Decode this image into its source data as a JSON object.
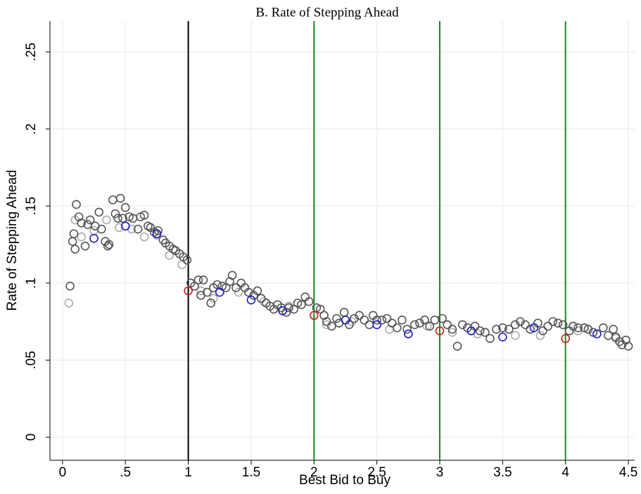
{
  "chart_data": {
    "type": "scatter",
    "title": "B. Rate of Stepping Ahead",
    "x_label": "Best Bid to Buy",
    "y_label": "Rate of Stepping Ahead",
    "xlim": [
      -0.1,
      4.55
    ],
    "ylim": [
      -0.015,
      0.27
    ],
    "xticks": [
      0,
      {
        "value": 0.5,
        "label": ".5"
      },
      1,
      1.5,
      2,
      2.5,
      3,
      3.5,
      4,
      4.5
    ],
    "yticks": [
      0,
      {
        "value": 0.05,
        "label": ".05"
      },
      {
        "value": 0.1,
        "label": ".1"
      },
      {
        "value": 0.15,
        "label": ".15"
      },
      {
        "value": 0.2,
        "label": ".2"
      },
      {
        "value": 0.25,
        "label": ".25"
      }
    ],
    "grid": true,
    "vlines": [
      {
        "x": 1,
        "color": "#000000"
      },
      {
        "x": 2,
        "color": "#1f8a1f"
      },
      {
        "x": 3,
        "color": "#1f8a1f"
      },
      {
        "x": 4,
        "color": "#1f8a1f"
      }
    ],
    "series": [
      {
        "color": "#aaaaaa",
        "x": [
          0.05,
          0.1,
          0.15,
          0.25,
          0.35,
          0.45,
          0.55,
          0.65,
          0.75,
          0.85,
          0.95,
          1.1,
          1.2,
          1.4,
          1.6,
          1.8,
          2.1,
          2.3,
          2.6,
          2.9,
          3.1,
          3.3,
          3.6,
          3.8,
          4.1,
          4.4
        ],
        "values": [
          0.087,
          0.141,
          0.13,
          0.134,
          0.141,
          0.136,
          0.135,
          0.13,
          0.131,
          0.118,
          0.112,
          0.095,
          0.09,
          0.094,
          0.088,
          0.085,
          0.073,
          0.075,
          0.07,
          0.072,
          0.068,
          0.067,
          0.066,
          0.066,
          0.069,
          0.064
        ]
      },
      {
        "color": "#555555",
        "x": [
          0.06,
          0.08,
          0.09,
          0.1,
          0.11,
          0.13,
          0.15,
          0.18,
          0.2,
          0.22,
          0.26,
          0.29,
          0.31,
          0.34,
          0.36,
          0.37,
          0.4,
          0.42,
          0.44,
          0.46,
          0.48,
          0.5,
          0.53,
          0.56,
          0.6,
          0.62,
          0.65,
          0.68,
          0.7,
          0.73,
          0.76,
          0.8,
          0.82,
          0.85,
          0.88,
          0.9,
          0.93,
          0.96,
          0.99,
          1.02,
          1.05,
          1.08,
          1.1,
          1.12,
          1.15,
          1.18,
          1.2,
          1.23,
          1.27,
          1.3,
          1.33,
          1.35,
          1.38,
          1.42,
          1.45,
          1.48,
          1.52,
          1.55,
          1.58,
          1.62,
          1.65,
          1.68,
          1.71,
          1.74,
          1.78,
          1.8,
          1.84,
          1.87,
          1.9,
          1.93,
          1.96,
          2.02,
          2.05,
          2.08,
          2.1,
          2.14,
          2.18,
          2.2,
          2.24,
          2.28,
          2.32,
          2.36,
          2.4,
          2.44,
          2.47,
          2.5,
          2.54,
          2.58,
          2.62,
          2.66,
          2.7,
          2.74,
          2.8,
          2.84,
          2.88,
          2.92,
          2.96,
          3.02,
          3.06,
          3.1,
          3.14,
          3.18,
          3.22,
          3.28,
          3.32,
          3.36,
          3.4,
          3.45,
          3.5,
          3.55,
          3.6,
          3.64,
          3.68,
          3.72,
          3.78,
          3.82,
          3.86,
          3.9,
          3.94,
          3.98,
          4.03,
          4.06,
          4.1,
          4.15,
          4.18,
          4.22,
          4.3,
          4.34,
          4.38,
          4.4,
          4.43,
          4.45,
          4.48,
          4.5
        ],
        "values": [
          0.098,
          0.127,
          0.132,
          0.122,
          0.151,
          0.143,
          0.139,
          0.124,
          0.138,
          0.141,
          0.137,
          0.146,
          0.135,
          0.127,
          0.124,
          0.125,
          0.154,
          0.145,
          0.142,
          0.155,
          0.142,
          0.149,
          0.143,
          0.142,
          0.135,
          0.143,
          0.144,
          0.137,
          0.136,
          0.133,
          0.134,
          0.128,
          0.126,
          0.124,
          0.122,
          0.121,
          0.119,
          0.117,
          0.115,
          0.1,
          0.098,
          0.102,
          0.092,
          0.102,
          0.094,
          0.087,
          0.097,
          0.099,
          0.098,
          0.097,
          0.101,
          0.105,
          0.097,
          0.1,
          0.097,
          0.094,
          0.092,
          0.095,
          0.09,
          0.087,
          0.085,
          0.083,
          0.086,
          0.084,
          0.081,
          0.084,
          0.083,
          0.087,
          0.086,
          0.091,
          0.088,
          0.084,
          0.083,
          0.079,
          0.075,
          0.072,
          0.077,
          0.074,
          0.081,
          0.073,
          0.077,
          0.079,
          0.076,
          0.073,
          0.079,
          0.076,
          0.076,
          0.077,
          0.074,
          0.071,
          0.076,
          0.07,
          0.073,
          0.074,
          0.076,
          0.072,
          0.076,
          0.077,
          0.073,
          0.07,
          0.059,
          0.073,
          0.071,
          0.072,
          0.069,
          0.068,
          0.064,
          0.07,
          0.071,
          0.07,
          0.073,
          0.075,
          0.073,
          0.07,
          0.074,
          0.069,
          0.072,
          0.075,
          0.074,
          0.073,
          0.069,
          0.072,
          0.071,
          0.071,
          0.07,
          0.068,
          0.071,
          0.066,
          0.07,
          0.065,
          0.062,
          0.06,
          0.063,
          0.059
        ]
      },
      {
        "color": "#1a1acc",
        "x": [
          0.25,
          0.5,
          0.75,
          1.25,
          1.5,
          1.75,
          2.25,
          2.5,
          2.75,
          3.25,
          3.5,
          3.75,
          4.25
        ],
        "values": [
          0.129,
          0.137,
          0.132,
          0.094,
          0.089,
          0.082,
          0.076,
          0.073,
          0.067,
          0.069,
          0.065,
          0.071,
          0.067
        ]
      },
      {
        "color": "#cc1a1a",
        "x": [
          1,
          2,
          3,
          4
        ],
        "values": [
          0.095,
          0.079,
          0.069,
          0.064
        ]
      }
    ]
  }
}
